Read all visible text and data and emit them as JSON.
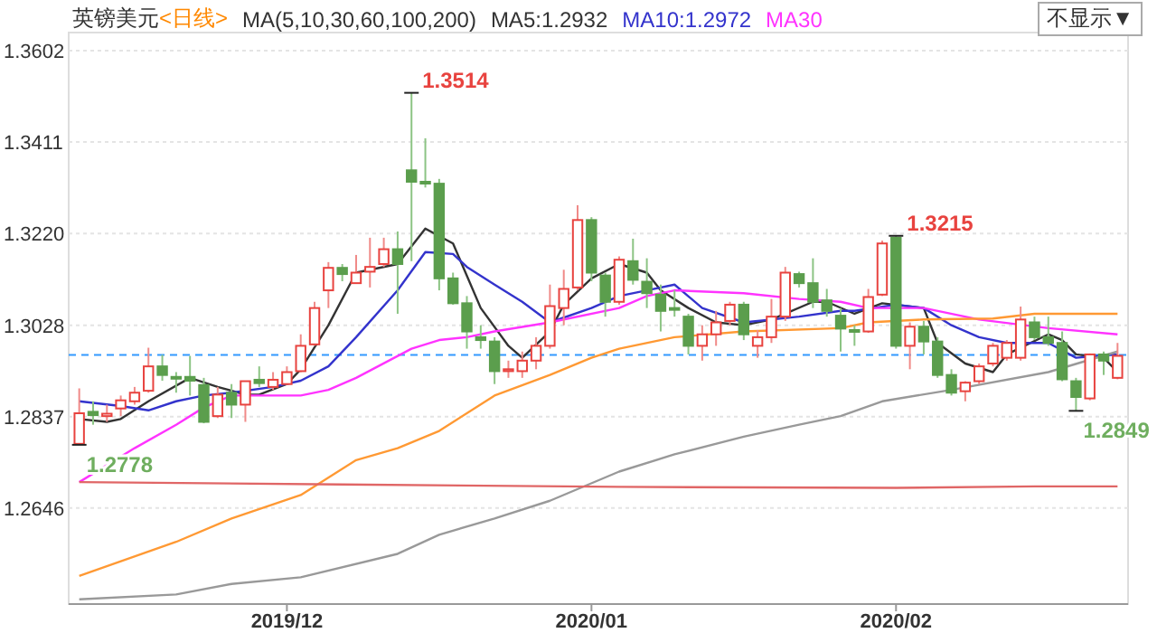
{
  "chart_data": {
    "type": "candlestick",
    "title": "英镑美元",
    "subtitle": "<日线>",
    "legend_title": "MA(5,10,30,60,100,200)",
    "legend": "top",
    "grid": "y",
    "categories": [
      null,
      null,
      null,
      null,
      null,
      null,
      null,
      null,
      null,
      null,
      null,
      null,
      null,
      null,
      null,
      "2019/12",
      null,
      null,
      null,
      null,
      null,
      null,
      null,
      null,
      null,
      null,
      null,
      null,
      null,
      null,
      null,
      null,
      null,
      null,
      null,
      null,
      null,
      "2020/01",
      null,
      null,
      null,
      null,
      null,
      null,
      null,
      null,
      null,
      null,
      null,
      null,
      null,
      null,
      null,
      null,
      null,
      null,
      null,
      null,
      null,
      "2020/02",
      null,
      null,
      null,
      null,
      null,
      null,
      null,
      null,
      null,
      null,
      null,
      null,
      null,
      null,
      null,
      null
    ],
    "ohlc": [
      [
        1.278,
        1.2896,
        1.2778,
        1.2844
      ],
      [
        1.2847,
        1.2869,
        1.282,
        1.284
      ],
      [
        1.2838,
        1.2862,
        1.2826,
        1.2843
      ],
      [
        1.2854,
        1.2881,
        1.2838,
        1.2871
      ],
      [
        1.2869,
        1.2899,
        1.2862,
        1.2887
      ],
      [
        1.2891,
        1.2981,
        1.2887,
        1.2942
      ],
      [
        1.2942,
        1.2966,
        1.2912,
        1.2924
      ],
      [
        1.292,
        1.293,
        1.2887,
        1.2917
      ],
      [
        1.292,
        1.2964,
        1.2881,
        1.2912
      ],
      [
        1.2903,
        1.2918,
        1.2823,
        1.2826
      ],
      [
        1.2838,
        1.2899,
        1.2834,
        1.2883
      ],
      [
        1.2887,
        1.2905,
        1.2834,
        1.2862
      ],
      [
        1.2862,
        1.2911,
        1.2826,
        1.2911
      ],
      [
        1.2914,
        1.2942,
        1.2899,
        1.2907
      ],
      [
        1.2899,
        1.293,
        1.2893,
        1.2914
      ],
      [
        1.2905,
        1.2942,
        1.2903,
        1.293
      ],
      [
        1.2932,
        1.3009,
        1.293,
        1.2985
      ],
      [
        1.2988,
        1.3077,
        1.2985,
        1.3064
      ],
      [
        1.3101,
        1.316,
        1.3064,
        1.3148
      ],
      [
        1.3148,
        1.3156,
        1.312,
        1.3135
      ],
      [
        1.3116,
        1.3175,
        1.3116,
        1.3138
      ],
      [
        1.314,
        1.3211,
        1.3107,
        1.315
      ],
      [
        1.3156,
        1.3211,
        1.315,
        1.3187
      ],
      [
        1.3187,
        1.3224,
        1.3052,
        1.3156
      ],
      [
        1.3352,
        1.3514,
        1.3162,
        1.3328
      ],
      [
        1.3328,
        1.3419,
        1.3316,
        1.3326
      ],
      [
        1.3324,
        1.3334,
        1.3101,
        1.3126
      ],
      [
        1.3126,
        1.3138,
        1.3071,
        1.3074
      ],
      [
        1.3074,
        1.3089,
        1.2979,
        1.3015
      ],
      [
        1.3003,
        1.3028,
        1.2979,
        1.2997
      ],
      [
        1.2994,
        1.3003,
        1.2905,
        1.2932
      ],
      [
        1.2932,
        1.2954,
        1.2918,
        1.2936
      ],
      [
        1.2932,
        1.2973,
        1.2918,
        1.2954
      ],
      [
        1.2954,
        1.3003,
        1.2936,
        1.2985
      ],
      [
        1.2985,
        1.3113,
        1.2979,
        1.3068
      ],
      [
        1.3064,
        1.3144,
        1.3028,
        1.3104
      ],
      [
        1.3107,
        1.3279,
        1.3101,
        1.3248
      ],
      [
        1.3248,
        1.3254,
        1.312,
        1.3138
      ],
      [
        1.3132,
        1.3138,
        1.3046,
        1.3077
      ],
      [
        1.3077,
        1.3172,
        1.3071,
        1.3165
      ],
      [
        1.3162,
        1.3209,
        1.3113,
        1.3123
      ],
      [
        1.3119,
        1.3168,
        1.3064,
        1.3095
      ],
      [
        1.3092,
        1.3113,
        1.3015,
        1.3058
      ],
      [
        1.3064,
        1.3101,
        1.3046,
        1.3061
      ],
      [
        1.3046,
        1.3052,
        1.2967,
        1.2985
      ],
      [
        1.2985,
        1.3028,
        1.2954,
        1.3009
      ],
      [
        1.3009,
        1.3058,
        1.2985,
        1.3034
      ],
      [
        1.3037,
        1.3077,
        1.3028,
        1.3071
      ],
      [
        1.3071,
        1.3077,
        1.2997,
        1.3009
      ],
      [
        1.2985,
        1.3018,
        1.296,
        1.3003
      ],
      [
        1.3003,
        1.3083,
        1.2991,
        1.3046
      ],
      [
        1.3046,
        1.315,
        1.3037,
        1.3138
      ],
      [
        1.3135,
        1.314,
        1.3107,
        1.3116
      ],
      [
        1.3116,
        1.3168,
        1.3064,
        1.3077
      ],
      [
        1.308,
        1.3104,
        1.3046,
        1.3058
      ],
      [
        1.3048,
        1.3064,
        1.2973,
        1.3021
      ],
      [
        1.3018,
        1.3028,
        1.2985,
        1.3017
      ],
      [
        1.3015,
        1.3104,
        1.3012,
        1.3087
      ],
      [
        1.3092,
        1.3205,
        1.3089,
        1.3199
      ],
      [
        1.3211,
        1.3215,
        1.2979,
        1.2985
      ],
      [
        1.2985,
        1.3034,
        1.2936,
        1.3025
      ],
      [
        1.3025,
        1.3037,
        1.2967,
        1.2994
      ],
      [
        1.2994,
        1.3003,
        1.2918,
        1.2924
      ],
      [
        1.2924,
        1.2936,
        1.2881,
        1.2887
      ],
      [
        1.289,
        1.2911,
        1.2869,
        1.2908
      ],
      [
        1.2911,
        1.2948,
        1.2905,
        1.2942
      ],
      [
        1.2948,
        1.2991,
        1.2942,
        1.2985
      ],
      [
        1.296,
        1.2997,
        1.2954,
        1.2991
      ],
      [
        1.296,
        1.3067,
        1.2954,
        1.304
      ],
      [
        1.3034,
        1.3046,
        1.2997,
        1.3003
      ],
      [
        1.3003,
        1.3046,
        1.2985,
        1.2991
      ],
      [
        1.2991,
        1.3015,
        1.2911,
        1.2915
      ],
      [
        1.2911,
        1.2918,
        1.2849,
        1.2878
      ],
      [
        1.2875,
        1.2969,
        1.2871,
        1.2967
      ],
      [
        1.2967,
        1.2973,
        1.2924,
        1.2954
      ],
      [
        1.2918,
        1.2991,
        1.2915,
        1.2964
      ]
    ],
    "series": [
      {
        "name": "MA5:1.2932",
        "type": "line",
        "color": "#333333",
        "values": [
          1.2832,
          null,
          1.2826,
          1.2832,
          null,
          1.2869,
          null,
          null,
          1.2918,
          null,
          1.2899,
          null,
          1.2883,
          1.2883,
          null,
          1.2905,
          1.2936,
          null,
          1.3028,
          null,
          1.3138,
          null,
          null,
          1.3156,
          null,
          1.323,
          null,
          1.3199,
          null,
          1.3064,
          null,
          1.2985,
          1.296,
          null,
          1.3015,
          1.3071,
          null,
          1.3126,
          null,
          1.3156,
          null,
          1.3138,
          1.3101,
          null,
          1.3064,
          null,
          1.3034,
          null,
          1.3028,
          null,
          1.304,
          1.3052,
          null,
          1.3077,
          1.3077,
          null,
          1.3052,
          null,
          1.3074,
          null,
          null,
          1.3064,
          1.2991,
          null,
          1.2948,
          null,
          1.293,
          1.2967,
          null,
          null,
          1.3009,
          1.2997,
          1.2967,
          null,
          1.296,
          1.293
        ]
      },
      {
        "name": "MA10:1.2972",
        "type": "line",
        "color": "#3333cc",
        "values": [
          1.2869,
          null,
          null,
          1.2859,
          null,
          1.285,
          null,
          1.2869,
          null,
          1.2881,
          null,
          1.2887,
          null,
          null,
          1.2899,
          null,
          1.2912,
          null,
          1.2942,
          null,
          1.3003,
          null,
          null,
          1.3101,
          null,
          1.3181,
          null,
          1.3177,
          1.315,
          null,
          1.3113,
          null,
          1.3077,
          null,
          1.3034,
          null,
          null,
          1.3064,
          null,
          1.3089,
          null,
          1.3101,
          null,
          1.3113,
          null,
          1.3064,
          null,
          null,
          1.3034,
          null,
          1.304,
          null,
          1.3046,
          null,
          null,
          1.3058,
          1.3058,
          null,
          null,
          1.3071,
          null,
          1.3064,
          null,
          1.3028,
          null,
          1.3003,
          null,
          1.2991,
          null,
          null,
          1.2991,
          null,
          1.296,
          null,
          null,
          1.2967
        ]
      },
      {
        "name": "MA30",
        "type": "line",
        "color": "#ff33ff",
        "values": [
          1.27,
          null,
          null,
          null,
          1.2771,
          null,
          null,
          1.282,
          null,
          1.2856,
          null,
          1.2881,
          null,
          null,
          null,
          null,
          1.2881,
          null,
          1.2893,
          null,
          1.2918,
          null,
          null,
          null,
          1.2979,
          null,
          1.2997,
          null,
          1.3003,
          null,
          1.3015,
          null,
          null,
          null,
          1.3034,
          null,
          null,
          null,
          null,
          1.3064,
          null,
          1.3089,
          null,
          1.3101,
          null,
          null,
          null,
          null,
          1.3095,
          null,
          null,
          null,
          1.3083,
          null,
          null,
          1.3077,
          null,
          1.3064,
          null,
          null,
          null,
          1.3064,
          null,
          null,
          null,
          1.304,
          null,
          null,
          null,
          null,
          1.3022,
          null,
          null,
          null,
          null,
          1.3009
        ]
      },
      {
        "type": "line",
        "color": "#ff9933",
        "values": [
          1.2504,
          null,
          null,
          null,
          null,
          null,
          null,
          1.2575,
          null,
          null,
          null,
          1.2624,
          null,
          null,
          null,
          null,
          1.2673,
          null,
          null,
          null,
          1.2746,
          null,
          null,
          1.2771,
          null,
          null,
          1.2807,
          null,
          null,
          null,
          1.2881,
          null,
          null,
          null,
          1.2924,
          null,
          null,
          1.296,
          null,
          1.2979,
          null,
          null,
          null,
          1.3003,
          null,
          null,
          null,
          null,
          1.3015,
          null,
          null,
          null,
          null,
          null,
          null,
          1.3022,
          null,
          1.3034,
          null,
          null,
          null,
          1.304,
          null,
          null,
          null,
          null,
          1.3042,
          null,
          null,
          1.3052,
          null,
          null,
          null,
          null,
          null,
          1.3052
        ]
      },
      {
        "type": "line",
        "color": "#999999",
        "values": [
          1.2455,
          null,
          null,
          null,
          null,
          null,
          null,
          1.2465,
          null,
          null,
          null,
          1.2487,
          null,
          null,
          null,
          null,
          1.2501,
          null,
          null,
          null,
          null,
          null,
          null,
          1.255,
          null,
          null,
          1.259,
          null,
          null,
          null,
          1.2624,
          null,
          null,
          null,
          1.2661,
          null,
          null,
          null,
          null,
          1.2722,
          null,
          null,
          null,
          1.2758,
          null,
          null,
          null,
          null,
          1.2795,
          null,
          null,
          null,
          1.282,
          null,
          null,
          1.2838,
          null,
          null,
          1.2869,
          null,
          null,
          null,
          null,
          1.2893,
          null,
          null,
          null,
          null,
          null,
          null,
          1.293,
          null,
          null,
          null,
          null,
          1.2973
        ]
      },
      {
        "type": "line",
        "color": "#e06666",
        "values": [
          1.27,
          null,
          null,
          null,
          null,
          null,
          null,
          null,
          null,
          null,
          null,
          null,
          null,
          null,
          null,
          null,
          null,
          null,
          null,
          1.2695,
          null,
          null,
          null,
          null,
          null,
          null,
          null,
          null,
          null,
          null,
          null,
          null,
          null,
          null,
          null,
          null,
          null,
          null,
          null,
          1.269,
          null,
          null,
          null,
          null,
          null,
          null,
          null,
          null,
          null,
          null,
          null,
          null,
          null,
          null,
          null,
          null,
          null,
          null,
          null,
          1.2688,
          null,
          null,
          null,
          null,
          null,
          null,
          null,
          null,
          null,
          1.2691,
          null,
          null,
          null,
          null,
          null,
          1.2691
        ]
      }
    ],
    "ylim": [
      1.2445,
      1.364
    ],
    "yticks": [
      1.3602,
      1.3411,
      {
        "value": 1.322,
        "label": "1.3220"
      },
      1.3028,
      1.2837,
      1.2646
    ],
    "ref_lines": [
      {
        "axis": "y",
        "value": 1.2966,
        "color": "#3399ff",
        "line_style": "dashed"
      }
    ],
    "annotations": [
      "不显示▼",
      "1.3514",
      "1.3215",
      "1.2778",
      "1.2849"
    ]
  }
}
